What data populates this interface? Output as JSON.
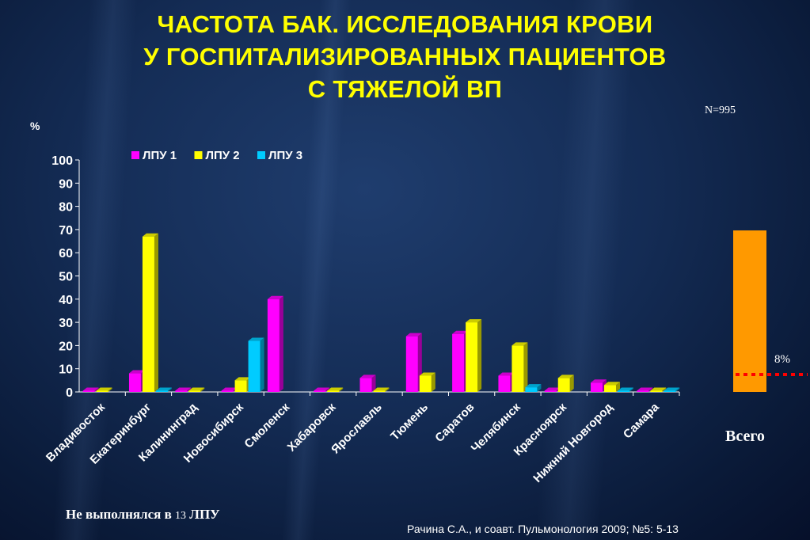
{
  "title_lines": [
    "ЧАСТОТА БАК. ИССЛЕДОВАНИЯ КРОВИ",
    "У ГОСПИТАЛИЗИРОВАННЫХ ПАЦИЕНТОВ",
    "С ТЯЖЕЛОЙ ВП"
  ],
  "n_label": "N=995",
  "unit_label": "%",
  "footnote_text": "Не выполнялся в ",
  "footnote_number": "13",
  "footnote_suffix": " ЛПУ",
  "source": "Рачина С.А., и соавт. Пульмонология 2009; №5: 5-13",
  "total": {
    "label": "Всего",
    "percent_label": "8%",
    "value": 8,
    "color": "#ff9900",
    "line_color": "#ff0000"
  },
  "chart_data": {
    "type": "bar",
    "ylim": [
      0,
      100
    ],
    "yticks": [
      0,
      10,
      20,
      30,
      40,
      50,
      60,
      70,
      80,
      90,
      100
    ],
    "legend_position": "top",
    "categories": [
      "Владивосток",
      "Екатеринбург",
      "Калининград",
      "Новосибирск",
      "Смоленск",
      "Хабаровск",
      "Ярославль",
      "Тюмень",
      "Саратов",
      "Челябинск",
      "Красноярск",
      "Нижний Новгород",
      "Самара"
    ],
    "series": [
      {
        "name": "ЛПУ 1",
        "color": "#ff00ff",
        "values": [
          0,
          8,
          0,
          0,
          40,
          0,
          6,
          24,
          25,
          7,
          0,
          4,
          0
        ]
      },
      {
        "name": "ЛПУ 2",
        "color": "#ffff00",
        "values": [
          0,
          67,
          0,
          5,
          null,
          0,
          0,
          7,
          30,
          20,
          6,
          3,
          0
        ]
      },
      {
        "name": "ЛПУ 3",
        "color": "#00ccff",
        "values": [
          null,
          0,
          null,
          22,
          null,
          null,
          null,
          null,
          null,
          2,
          null,
          0,
          0
        ]
      }
    ]
  }
}
